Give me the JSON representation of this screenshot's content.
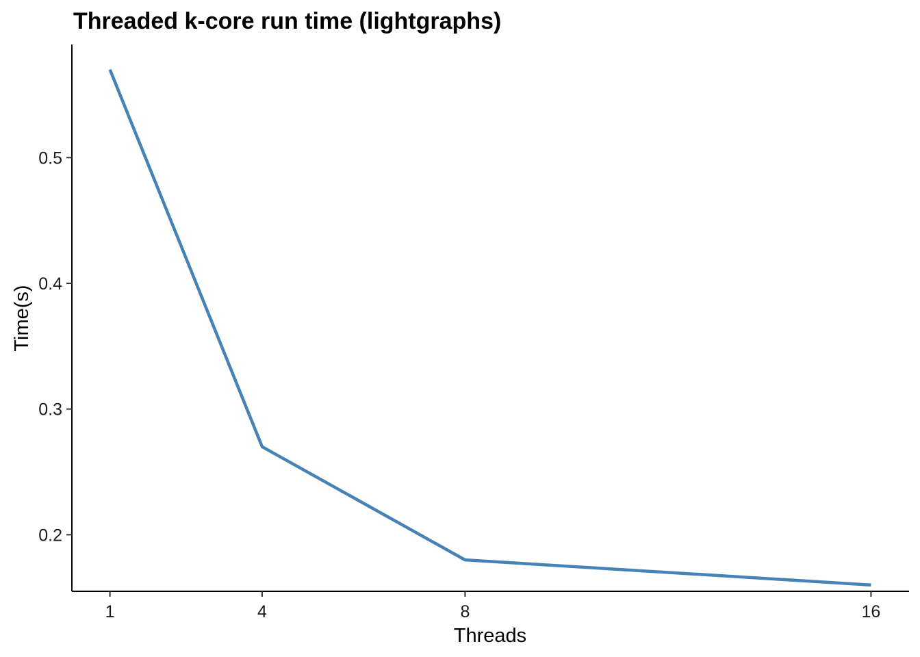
{
  "chart_data": {
    "type": "line",
    "title": "Threaded k-core run time (lightgraphs)",
    "xlabel": "Threads",
    "ylabel": "Time(s)",
    "x_ticks": [
      1,
      4,
      8,
      16
    ],
    "y_ticks": [
      0.2,
      0.3,
      0.4,
      0.5
    ],
    "xlim": [
      0.25,
      16.75
    ],
    "ylim": [
      0.155,
      0.59
    ],
    "grid": false,
    "line_color": "#4682B4",
    "series": [
      {
        "x": [
          1,
          4,
          8,
          16
        ],
        "values": [
          0.57,
          0.27,
          0.18,
          0.16
        ]
      }
    ]
  }
}
